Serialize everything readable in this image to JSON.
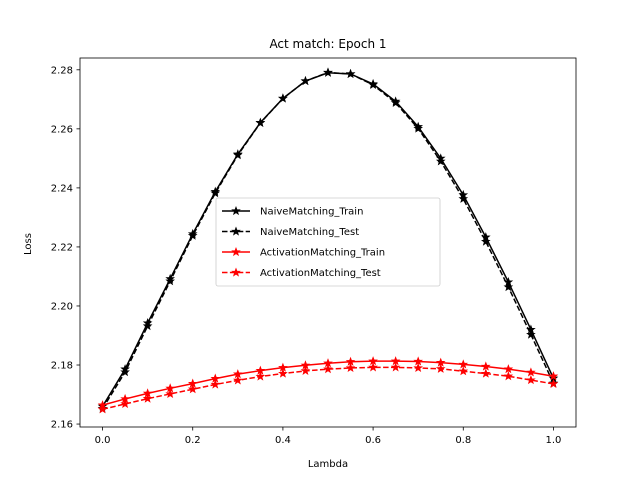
{
  "chart_data": {
    "type": "line",
    "title": "Act match: Epoch 1",
    "xlabel": "Lambda",
    "ylabel": "Loss",
    "xlim": [
      -0.05,
      1.05
    ],
    "ylim": [
      2.159,
      2.284
    ],
    "xticks": [
      "0.0",
      "0.2",
      "0.4",
      "0.6",
      "0.8",
      "1.0"
    ],
    "yticks": [
      "2.16",
      "2.18",
      "2.20",
      "2.22",
      "2.24",
      "2.26",
      "2.28"
    ],
    "grid": false,
    "legend_position": "center",
    "x": [
      0.0,
      0.05,
      0.1,
      0.15,
      0.2,
      0.25,
      0.3,
      0.35,
      0.4,
      0.45,
      0.5,
      0.55,
      0.6,
      0.65,
      0.7,
      0.75,
      0.8,
      0.85,
      0.9,
      0.95,
      1.0
    ],
    "series": [
      {
        "name": "NaiveMatching_Train",
        "color": "#000000",
        "linestyle": "solid",
        "marker": "star",
        "values": [
          2.166,
          2.1786,
          2.1942,
          2.2092,
          2.2244,
          2.2387,
          2.2514,
          2.2621,
          2.2703,
          2.2762,
          2.279,
          2.2786,
          2.2752,
          2.2693,
          2.2607,
          2.25,
          2.2376,
          2.2233,
          2.2081,
          2.192,
          2.1755
        ]
      },
      {
        "name": "NaiveMatching_Test",
        "color": "#000000",
        "linestyle": "dashed",
        "marker": "star",
        "values": [
          2.1652,
          2.1776,
          2.1932,
          2.2084,
          2.2238,
          2.2382,
          2.2511,
          2.262,
          2.2703,
          2.2762,
          2.2791,
          2.2786,
          2.2749,
          2.2688,
          2.2601,
          2.249,
          2.2363,
          2.2218,
          2.2064,
          2.1903,
          2.1738
        ]
      },
      {
        "name": "ActivationMatching_Train",
        "color": "#ff0000",
        "linestyle": "solid",
        "marker": "star",
        "values": [
          2.1664,
          2.1685,
          2.1704,
          2.1721,
          2.1737,
          2.1754,
          2.1769,
          2.1781,
          2.1791,
          2.1799,
          2.1806,
          2.1811,
          2.1813,
          2.1813,
          2.1812,
          2.1808,
          2.1802,
          2.1795,
          2.1786,
          2.1775,
          2.1762
        ]
      },
      {
        "name": "ActivationMatching_Test",
        "color": "#ff0000",
        "linestyle": "dashed",
        "marker": "star",
        "values": [
          2.165,
          2.1668,
          2.1686,
          2.1702,
          2.1718,
          2.1734,
          2.1748,
          2.1761,
          2.1771,
          2.178,
          2.1786,
          2.179,
          2.1792,
          2.1792,
          2.179,
          2.1787,
          2.1779,
          2.1771,
          2.1762,
          2.1749,
          2.1736
        ]
      }
    ]
  }
}
